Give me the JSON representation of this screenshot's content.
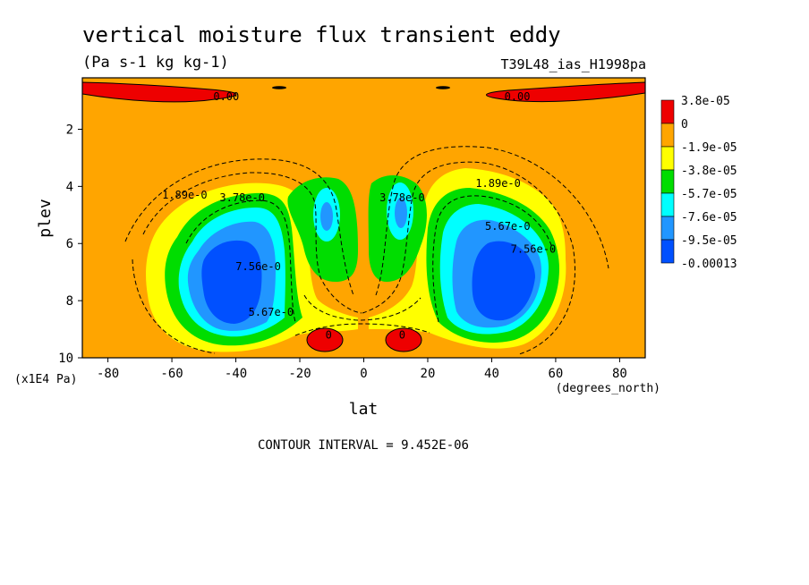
{
  "chart_data": {
    "type": "heatmap",
    "subtype": "filled-contour",
    "title": "vertical moisture flux transient eddy",
    "units": "(Pa s-1 kg kg-1)",
    "dataset": "T39L48_ias_H1998pa",
    "xlabel": "lat",
    "x_units": "(degrees_north)",
    "ylabel": "plev",
    "y_units": "(x1E4 Pa)",
    "xlim": [
      -88,
      88
    ],
    "ylim": [
      10,
      0.2
    ],
    "x_ticks": [
      -80,
      -60,
      -40,
      -20,
      0,
      20,
      40,
      60,
      80
    ],
    "y_ticks": [
      2,
      4,
      6,
      8,
      10
    ],
    "contour_interval_label": "CONTOUR INTERVAL = 9.452E-06",
    "contour_interval": 9.452e-06,
    "legend": {
      "placement": "right",
      "colors": [
        "#ee0000",
        "#ffa500",
        "#ffff00",
        "#00dd00",
        "#00ffff",
        "#2196ff",
        "#0050ff"
      ],
      "labels": [
        "3.8e-05",
        "0",
        "-1.9e-05",
        "-3.8e-05",
        "-5.7e-05",
        "-7.6e-05",
        "-9.5e-05",
        "-0.00013"
      ]
    },
    "contour_labels": [
      {
        "text": "0.00",
        "lat": -43,
        "plev": 0.85
      },
      {
        "text": "0.00",
        "lat": 48,
        "plev": 0.85
      },
      {
        "text": "1.89e-0",
        "lat": -56,
        "plev": 4.3
      },
      {
        "text": "3.78e-0",
        "lat": -38,
        "plev": 4.4
      },
      {
        "text": "3.78e-0",
        "lat": 12,
        "plev": 4.4
      },
      {
        "text": "1.89e-0",
        "lat": 42,
        "plev": 3.9
      },
      {
        "text": "5.67e-0",
        "lat": 45,
        "plev": 5.4
      },
      {
        "text": "7.56e-0",
        "lat": 53,
        "plev": 6.2
      },
      {
        "text": "7.56e-0",
        "lat": -33,
        "plev": 6.8
      },
      {
        "text": "5.67e-0",
        "lat": -29,
        "plev": 8.4
      },
      {
        "text": "0",
        "lat": -11,
        "plev": 9.2
      },
      {
        "text": "0",
        "lat": 12,
        "plev": 9.2
      }
    ],
    "features": [
      {
        "kind": "positive",
        "name": "upper-left strip",
        "lat_range": [
          -88,
          -28
        ],
        "plev_range": [
          0.2,
          1.0
        ]
      },
      {
        "kind": "positive",
        "name": "upper-right strip",
        "lat_range": [
          32,
          88
        ],
        "plev_range": [
          0.2,
          1.0
        ]
      },
      {
        "kind": "positive",
        "name": "lower-left blob",
        "lat": -12,
        "plev": 9.2
      },
      {
        "kind": "positive",
        "name": "lower-right blob",
        "lat": 12,
        "plev": 9.2
      },
      {
        "kind": "minimum",
        "name": "southern min",
        "lat": -42,
        "plev": 7.5,
        "value": "-0.00013"
      },
      {
        "kind": "minimum",
        "name": "northern min",
        "lat": 42,
        "plev": 7.5,
        "value": "-0.00013"
      },
      {
        "kind": "minimum",
        "name": "southern subtrop lobe",
        "lat": -11,
        "plev": 5.2,
        "value": "-7.6e-05"
      },
      {
        "kind": "minimum",
        "name": "northern subtrop lobe",
        "lat": 11,
        "plev": 5.0,
        "value": "-7.6e-05"
      }
    ]
  }
}
